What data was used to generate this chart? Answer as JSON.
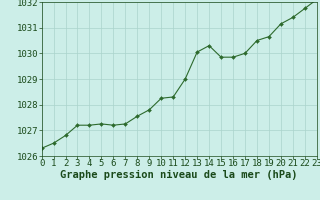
{
  "x": [
    0,
    1,
    2,
    3,
    4,
    5,
    6,
    7,
    8,
    9,
    10,
    11,
    12,
    13,
    14,
    15,
    16,
    17,
    18,
    19,
    20,
    21,
    22,
    23
  ],
  "y": [
    1026.3,
    1026.5,
    1026.8,
    1027.2,
    1027.2,
    1027.25,
    1027.2,
    1027.25,
    1027.55,
    1027.8,
    1028.25,
    1028.3,
    1029.0,
    1030.05,
    1030.3,
    1029.85,
    1029.85,
    1030.0,
    1030.5,
    1030.65,
    1031.15,
    1031.4,
    1031.75,
    1032.1
  ],
  "xlim": [
    0,
    23
  ],
  "ylim": [
    1026,
    1032
  ],
  "yticks": [
    1026,
    1027,
    1028,
    1029,
    1030,
    1031,
    1032
  ],
  "xticks": [
    0,
    1,
    2,
    3,
    4,
    5,
    6,
    7,
    8,
    9,
    10,
    11,
    12,
    13,
    14,
    15,
    16,
    17,
    18,
    19,
    20,
    21,
    22,
    23
  ],
  "line_color": "#2d6a2d",
  "marker_color": "#2d6a2d",
  "bg_color": "#cceee8",
  "grid_color": "#aad4cc",
  "xlabel": "Graphe pression niveau de la mer (hPa)",
  "xlabel_color": "#1a4a1a",
  "tick_color": "#1a4a1a",
  "tick_fontsize": 6.5,
  "xlabel_fontsize": 7.5
}
